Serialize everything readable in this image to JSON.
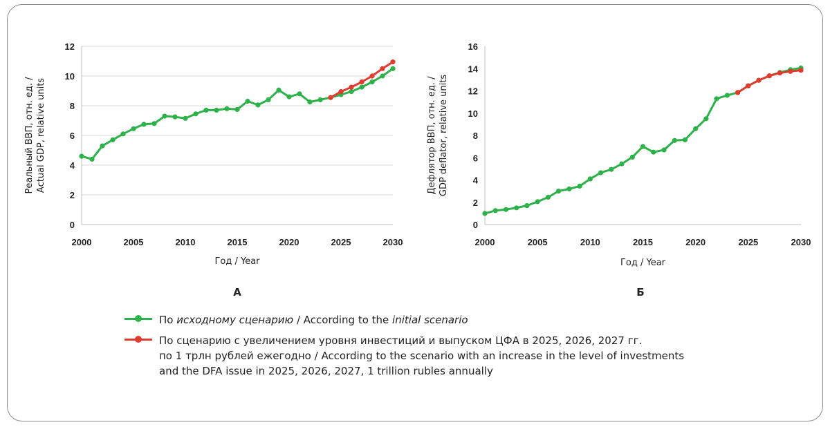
{
  "colors": {
    "initial": "#2db24a",
    "increased": "#e03b2f",
    "grid": "#d9d9d9",
    "axis": "#bfbfbf"
  },
  "legend": {
    "initial": {
      "prefix": "По ",
      "italic1": "исходному сценарию",
      "middle": " / According to the ",
      "italic2": "initial scenario"
    },
    "increased": {
      "line1": "По сценарию с увеличением уровня инвестиций и выпуском ЦФА в 2025, 2026, 2027 гг.",
      "line2": "по 1 трлн рублей ежегодно / According to the scenario with an increase in the level of investments",
      "line3": "and the DFA issue in 2025, 2026, 2027, 1 trillion rubles annually"
    }
  },
  "chart_data": [
    {
      "panel_label": "А",
      "type": "line",
      "ylabel_line1": "Реальный ВВП, отн. ед. /",
      "ylabel_line2": "Actual GDP, relative units",
      "xlabel": "Год / Year",
      "xlim": [
        2000,
        2030
      ],
      "ylim": [
        0,
        12
      ],
      "yticks": [
        0,
        2,
        4,
        6,
        8,
        10,
        12
      ],
      "xticks": [
        2000,
        2005,
        2010,
        2015,
        2020,
        2025,
        2030
      ],
      "grid": "horizontal",
      "series": [
        {
          "key": "initial",
          "x": [
            2000,
            2001,
            2002,
            2003,
            2004,
            2005,
            2006,
            2007,
            2008,
            2009,
            2010,
            2011,
            2012,
            2013,
            2014,
            2015,
            2016,
            2017,
            2018,
            2019,
            2020,
            2021,
            2022,
            2023,
            2024,
            2025,
            2026,
            2027,
            2028,
            2029,
            2030
          ],
          "y": [
            4.6,
            4.4,
            5.3,
            5.7,
            6.1,
            6.45,
            6.75,
            6.8,
            7.3,
            7.25,
            7.15,
            7.45,
            7.7,
            7.7,
            7.8,
            7.75,
            8.3,
            8.05,
            8.4,
            9.05,
            8.6,
            8.8,
            8.25,
            8.4,
            8.55,
            8.75,
            8.95,
            9.25,
            9.6,
            10.0,
            10.5
          ]
        },
        {
          "key": "increased",
          "x": [
            2024,
            2025,
            2026,
            2027,
            2028,
            2029,
            2030
          ],
          "y": [
            8.55,
            8.95,
            9.25,
            9.6,
            10.0,
            10.5,
            10.95
          ]
        }
      ]
    },
    {
      "panel_label": "Б",
      "type": "line",
      "ylabel_line1": "Дефлятор ВВП, отн. ед. /",
      "ylabel_line2": "GDP deflator, relative units",
      "xlabel": "Год / Year",
      "xlim": [
        2000,
        2030
      ],
      "ylim": [
        0,
        16
      ],
      "yticks": [
        0,
        2,
        4,
        6,
        8,
        10,
        12,
        14,
        16
      ],
      "xticks": [
        2000,
        2005,
        2010,
        2015,
        2020,
        2025,
        2030
      ],
      "grid": "none",
      "series": [
        {
          "key": "initial",
          "x": [
            2000,
            2001,
            2002,
            2003,
            2004,
            2005,
            2006,
            2007,
            2008,
            2009,
            2010,
            2011,
            2012,
            2013,
            2014,
            2015,
            2016,
            2017,
            2018,
            2019,
            2020,
            2021,
            2022,
            2023,
            2024,
            2025,
            2026,
            2027,
            2028,
            2029,
            2030
          ],
          "y": [
            1.0,
            1.25,
            1.35,
            1.5,
            1.7,
            2.05,
            2.45,
            3.0,
            3.2,
            3.45,
            4.1,
            4.65,
            4.95,
            5.45,
            6.05,
            7.0,
            6.5,
            6.7,
            7.55,
            7.6,
            8.6,
            9.5,
            11.3,
            11.6,
            11.85,
            12.45,
            12.95,
            13.35,
            13.65,
            13.9,
            14.05
          ]
        },
        {
          "key": "increased",
          "x": [
            2024,
            2025,
            2026,
            2027,
            2028,
            2029,
            2030
          ],
          "y": [
            11.85,
            12.45,
            12.95,
            13.35,
            13.6,
            13.75,
            13.85
          ]
        }
      ]
    }
  ]
}
